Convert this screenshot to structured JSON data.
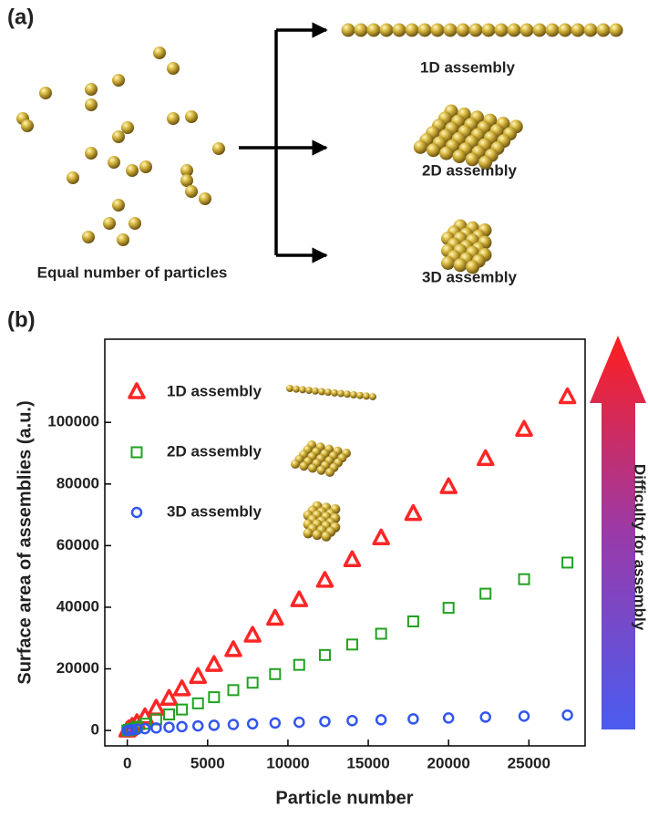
{
  "panel_a": {
    "label": "(a)",
    "source_label": "Equal number of particles",
    "targets": [
      "1D assembly",
      "2D assembly",
      "3D assembly"
    ]
  },
  "chart_data": {
    "type": "scatter",
    "label": "(b)",
    "xlabel": "Particle number",
    "ylabel": "Surface area of assemblies (a.u.)",
    "annotation": "Difficulty for assembly",
    "xlim": [
      -1400,
      28500
    ],
    "xticks": [
      0,
      5000,
      10000,
      15000,
      20000,
      25000
    ],
    "ylim": [
      -5000,
      127000
    ],
    "yticks": [
      0,
      20000,
      40000,
      60000,
      80000,
      100000
    ],
    "x": [
      0,
      100,
      300,
      600,
      1100,
      1800,
      2600,
      3400,
      4400,
      5400,
      6600,
      7800,
      9200,
      10700,
      12300,
      14000,
      15800,
      17800,
      20000,
      22300,
      24700,
      27400
    ],
    "series": [
      {
        "name": "1D assembly",
        "color": "#ff2626",
        "marker": "triangle",
        "values": [
          0,
          400,
          1200,
          2400,
          4300,
          7100,
          10300,
          13400,
          17400,
          21300,
          26100,
          30800,
          36300,
          42300,
          48600,
          55300,
          62400,
          70300,
          79000,
          88100,
          97600,
          108200
        ]
      },
      {
        "name": "2D assembly",
        "color": "#21a121",
        "marker": "square",
        "values": [
          0,
          200,
          600,
          1200,
          2200,
          3600,
          5200,
          6800,
          8800,
          10800,
          13100,
          15500,
          18300,
          21300,
          24500,
          27900,
          31400,
          35400,
          39800,
          44400,
          49100,
          54500
        ]
      },
      {
        "name": "3D assembly",
        "color": "#3355ee",
        "marker": "circle",
        "values": [
          0,
          120,
          250,
          390,
          590,
          820,
          1040,
          1240,
          1480,
          1690,
          1940,
          2170,
          2420,
          2670,
          2930,
          3200,
          3470,
          3750,
          4050,
          4350,
          4660,
          4990
        ]
      }
    ]
  }
}
